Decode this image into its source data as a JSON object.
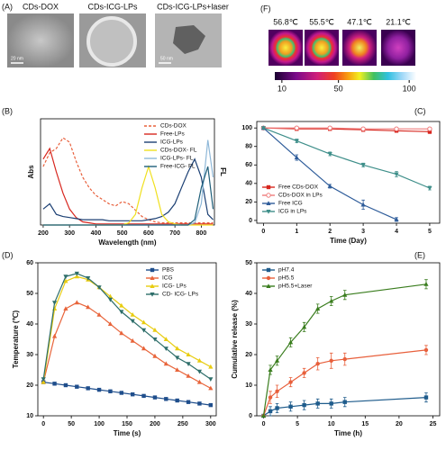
{
  "tem": {
    "panel": "(A)",
    "labels": [
      "CDs-DOX",
      "CDs-ICG-LPs",
      "CDs-ICG-LPs+laser"
    ],
    "scale_bars": [
      "20 nm",
      "50 nm"
    ]
  },
  "thermal": {
    "panel": "(F)",
    "temperatures": [
      "56.8℃",
      "55.5℃",
      "47.1℃",
      "21.1℃"
    ],
    "colorbar_lim": [
      5,
      105
    ],
    "colorbar_ticks": [
      10,
      50,
      100
    ]
  },
  "chart_data": [
    {
      "type": "line",
      "panel": "(B)",
      "xlabel": "Wavelength (nm)",
      "ylabel": "Abs",
      "y2label": "FL",
      "legend": "top-right",
      "xlim": [
        190,
        850
      ],
      "ylim": [
        0,
        1
      ],
      "xticks": [
        200,
        300,
        400,
        500,
        600,
        700,
        800
      ],
      "x": [
        200,
        225,
        250,
        275,
        300,
        325,
        350,
        375,
        400,
        425,
        450,
        475,
        500,
        525,
        550,
        575,
        600,
        625,
        650,
        675,
        700,
        725,
        750,
        775,
        800,
        825,
        845
      ],
      "series": [
        {
          "name": "CDs-DOX",
          "color": "#e8603c",
          "dash": true,
          "values": [
            0.55,
            0.68,
            0.72,
            0.82,
            0.78,
            0.6,
            0.45,
            0.35,
            0.28,
            0.24,
            0.2,
            0.18,
            0.22,
            0.2,
            0.14,
            0.08,
            0.05,
            0.03,
            0.02,
            0.02,
            0.02,
            0.02,
            0.02,
            0.02,
            0.02,
            0.02,
            0.02
          ]
        },
        {
          "name": "Free-LPs",
          "color": "#d7261e",
          "values": [
            0.62,
            0.72,
            0.5,
            0.3,
            0.15,
            0.07,
            0.03,
            0.02,
            0.01,
            0.01,
            0.01,
            0.01,
            0.01,
            0.01,
            0.01,
            0.01,
            0.01,
            0.01,
            0.01,
            0.01,
            0.01,
            0.01,
            0.01,
            0.01,
            0.01,
            0.01,
            0.01
          ]
        },
        {
          "name": "ICG-LPs",
          "color": "#1b3f73",
          "values": [
            0.15,
            0.2,
            0.1,
            0.08,
            0.07,
            0.06,
            0.05,
            0.05,
            0.05,
            0.05,
            0.04,
            0.04,
            0.04,
            0.04,
            0.04,
            0.04,
            0.05,
            0.06,
            0.08,
            0.12,
            0.2,
            0.35,
            0.5,
            0.62,
            0.45,
            0.1,
            0.05
          ]
        },
        {
          "name": "CDs-DOX- FL",
          "color": "#f0e020",
          "values": [
            0,
            0,
            0,
            0,
            0,
            0,
            0,
            0,
            0,
            0,
            0,
            0,
            0,
            0.02,
            0.1,
            0.35,
            0.55,
            0.35,
            0.1,
            0.03,
            0.01,
            0,
            0,
            0,
            0,
            0,
            0
          ]
        },
        {
          "name": "ICG-LPs- FL",
          "color": "#8fb8d8",
          "values": [
            0,
            0,
            0,
            0,
            0,
            0,
            0,
            0,
            0,
            0,
            0,
            0,
            0,
            0,
            0,
            0,
            0,
            0,
            0,
            0,
            0,
            0,
            0,
            0.02,
            0.2,
            0.8,
            0.45
          ]
        },
        {
          "name": "Free-ICG- FL",
          "color": "#1f5f7a",
          "values": [
            0,
            0,
            0,
            0,
            0,
            0,
            0,
            0,
            0,
            0,
            0,
            0,
            0,
            0,
            0,
            0,
            0,
            0,
            0,
            0,
            0,
            0,
            0,
            0.05,
            0.35,
            0.55,
            0.15
          ]
        }
      ]
    },
    {
      "type": "line",
      "panel": "(C)",
      "xlabel": "Time (Day)",
      "legend": "bottom-left",
      "xlim": [
        -0.2,
        5.3
      ],
      "ylim": [
        -3,
        107
      ],
      "xticks": [
        0,
        1,
        2,
        3,
        4,
        5
      ],
      "yticks": [
        0,
        20,
        40,
        60,
        80,
        100
      ],
      "x": [
        0,
        1,
        2,
        3,
        4,
        5
      ],
      "series": [
        {
          "name": "Free CDs-DOX",
          "color": "#d7261e",
          "marker": "square",
          "values": [
            100,
            99,
            99,
            98,
            97,
            96
          ],
          "errors": [
            1,
            1,
            1,
            1,
            1,
            2
          ]
        },
        {
          "name": "CDs-DOX in LPs",
          "color": "#ef7c7c",
          "marker": "open-circle",
          "values": [
            100,
            100,
            100,
            99,
            99,
            99
          ],
          "errors": [
            1,
            1,
            1,
            1,
            1,
            1
          ]
        },
        {
          "name": "Free ICG",
          "color": "#2e5c9a",
          "marker": "triangle-up",
          "values": [
            100,
            68,
            37,
            17,
            1,
            null
          ],
          "errors": [
            1,
            3,
            2,
            5,
            2,
            null
          ]
        },
        {
          "name": "ICG in LPs",
          "color": "#3f8f8a",
          "marker": "triangle-down",
          "values": [
            100,
            86,
            72,
            60,
            50,
            35
          ],
          "errors": [
            1,
            2,
            2,
            2,
            3,
            2
          ]
        }
      ]
    },
    {
      "type": "line",
      "panel": "(D)",
      "xlabel": "Time (s)",
      "ylabel": "Temperature (℃)",
      "legend": "top-right",
      "xlim": [
        -10,
        310
      ],
      "ylim": [
        10,
        60
      ],
      "xticks": [
        0,
        50,
        100,
        150,
        200,
        250,
        300
      ],
      "yticks": [
        10,
        20,
        30,
        40,
        50,
        60
      ],
      "x": [
        0,
        20,
        40,
        60,
        80,
        100,
        120,
        140,
        160,
        180,
        200,
        220,
        240,
        260,
        280,
        300
      ],
      "series": [
        {
          "name": "PBS",
          "color": "#1f4e8c",
          "marker": "square",
          "values": [
            21,
            20.5,
            20,
            19.5,
            19,
            18.5,
            18,
            17.5,
            17,
            16.5,
            16,
            15.5,
            15,
            14.5,
            14,
            13.5
          ]
        },
        {
          "name": "ICG",
          "color": "#e8643a",
          "marker": "triangle-up",
          "values": [
            21,
            36,
            45,
            47,
            45.5,
            43,
            40,
            37,
            34.5,
            32,
            29.5,
            27,
            25,
            23,
            21,
            19
          ]
        },
        {
          "name": "ICG- LPs",
          "color": "#e8cc10",
          "marker": "triangle-up",
          "values": [
            21,
            45,
            54,
            55.5,
            54.5,
            52,
            49,
            46,
            43,
            40.5,
            38,
            35,
            32,
            30,
            28,
            26
          ]
        },
        {
          "name": "CD- ICG- LPs",
          "color": "#2e6e6a",
          "marker": "triangle-down",
          "values": [
            22,
            47,
            55.5,
            56.5,
            55,
            52,
            48,
            44,
            41,
            38,
            35,
            32,
            29,
            27,
            24.5,
            22
          ]
        }
      ]
    },
    {
      "type": "line",
      "panel": "(E)",
      "xlabel": "Time (h)",
      "ylabel": "Cumulative release (%)",
      "legend": "top-left",
      "xlim": [
        -1,
        26
      ],
      "ylim": [
        0,
        50
      ],
      "xticks": [
        0,
        5,
        10,
        15,
        20,
        25
      ],
      "yticks": [
        0,
        10,
        20,
        30,
        40,
        50
      ],
      "x": [
        0,
        1,
        2,
        4,
        6,
        8,
        10,
        12,
        24
      ],
      "series": [
        {
          "name": "pH7.4",
          "color": "#1f5c8c",
          "marker": "square",
          "values": [
            0,
            1.5,
            2.5,
            3,
            3.5,
            4,
            4,
            4.5,
            6
          ],
          "errors": [
            0,
            1.5,
            1.5,
            1.5,
            1.5,
            1.5,
            1.5,
            1.5,
            1.5
          ]
        },
        {
          "name": "pH5.5",
          "color": "#e8603c",
          "marker": "circle",
          "values": [
            0,
            6,
            8,
            11,
            14,
            17,
            18,
            18.5,
            21.5
          ],
          "errors": [
            0,
            2,
            2,
            1.5,
            1.5,
            2,
            2.5,
            2,
            1.5
          ]
        },
        {
          "name": "pH5.5+Laser",
          "color": "#3a7d1e",
          "marker": "triangle-up",
          "values": [
            0,
            15,
            18,
            24,
            29,
            35,
            37.5,
            39.5,
            43
          ],
          "errors": [
            0,
            1.5,
            1.5,
            1.5,
            1.5,
            1.5,
            1.5,
            1.5,
            1.5
          ]
        }
      ]
    }
  ]
}
